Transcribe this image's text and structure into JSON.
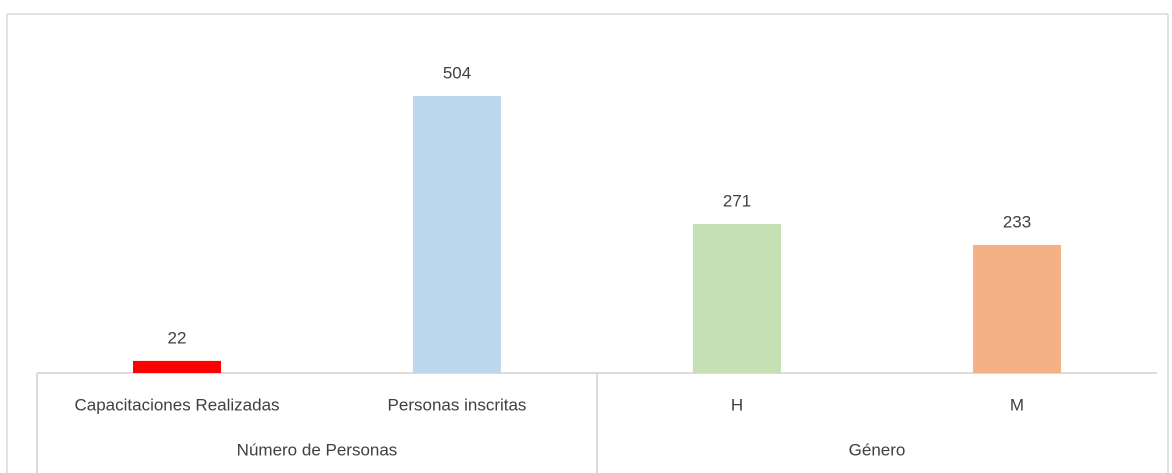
{
  "chart_data": {
    "type": "bar",
    "groups": [
      {
        "name": "Número de Personas",
        "categories": [
          "Capacitaciones Realizadas",
          "Personas inscritas"
        ],
        "values": [
          22,
          504
        ],
        "colors": [
          "#ff0000",
          "#bdd7ee"
        ]
      },
      {
        "name": "Género",
        "categories": [
          "H",
          "M"
        ],
        "values": [
          271,
          233
        ],
        "colors": [
          "#c5e0b4",
          "#f4b183"
        ]
      }
    ]
  }
}
